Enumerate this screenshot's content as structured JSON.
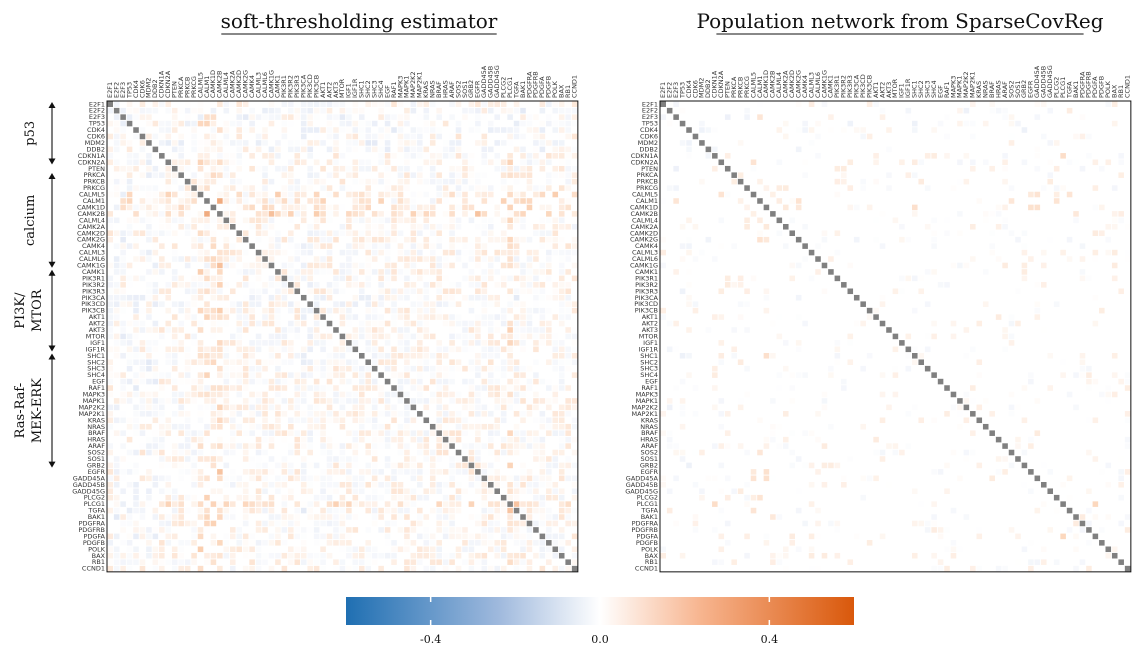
{
  "chart_data": {
    "type": "heatmap",
    "genes": [
      "E2F1",
      "E2F2",
      "E2F3",
      "TP53",
      "CDK4",
      "CDK6",
      "MDM2",
      "DDB2",
      "CDKN1A",
      "CDKN2A",
      "PTEN",
      "PRKCA",
      "PRKCB",
      "PRKCG",
      "CALML5",
      "CALM1",
      "CAMK1D",
      "CAMK2B",
      "CALML4",
      "CAMK2A",
      "CAMK2D",
      "CAMK2G",
      "CAMK4",
      "CALML3",
      "CALML6",
      "CAMK1G",
      "CAMK1",
      "PIK3R1",
      "PIK3R2",
      "PIK3R3",
      "PIK3CA",
      "PIK3CD",
      "PIK3CB",
      "AKT1",
      "AKT2",
      "AKT3",
      "MTOR",
      "IGF1",
      "IGF1R",
      "SHC1",
      "SHC2",
      "SHC3",
      "SHC4",
      "EGF",
      "RAF1",
      "MAPK3",
      "MAPK1",
      "MAP2K2",
      "MAP2K1",
      "KRAS",
      "NRAS",
      "BRAF",
      "HRAS",
      "ARAF",
      "SOS2",
      "SOS1",
      "GRB2",
      "EGFR",
      "GADD45A",
      "GADD45B",
      "GADD45G",
      "PLCG2",
      "PLCG1",
      "TGFA",
      "BAK1",
      "PDGFRA",
      "PDGFRB",
      "PDGFA",
      "PDGFB",
      "POLK",
      "BAX",
      "RB1",
      "CCND1"
    ],
    "panels": [
      {
        "title": "soft-thresholding estimator",
        "estimator": "soft-thresholding",
        "density": 0.72
      },
      {
        "title": "Population network from SparseCovReg",
        "estimator": "SparseCovReg",
        "density": 0.16
      }
    ],
    "groups": [
      {
        "label": "p53",
        "from": "E2F1",
        "to": "CDKN2A"
      },
      {
        "label": "calcium",
        "from": "PRKCA",
        "to": "CAMK1G"
      },
      {
        "label": "PI3K/\nMTOR",
        "from": "CAMK1",
        "to": "IGF1R"
      },
      {
        "label": "Ras-Raf-\nMEK-ERK",
        "from": "SHC1",
        "to": "GRB2"
      }
    ],
    "strong_genes_negative": [
      "E2F2",
      "E2F3",
      "TP53",
      "CDK4",
      "MDM2",
      "DDB2",
      "PIK3CA",
      "PIK3CD"
    ],
    "strong_genes_positive": [
      "CALML5",
      "CALM1",
      "CAMK1D",
      "CAMK2B",
      "PLCG1"
    ],
    "diagonal_color": "#808080",
    "colorbar": {
      "range": [
        -0.6,
        0.6
      ],
      "ticks": [
        -0.4,
        0.0,
        0.4
      ],
      "tick_labels": [
        "-0.4",
        "0.0",
        "0.4"
      ],
      "colors": [
        "#1f6fb2",
        "#dfe6f4",
        "#ffffff",
        "#fbd2b5",
        "#d9580b"
      ]
    }
  }
}
